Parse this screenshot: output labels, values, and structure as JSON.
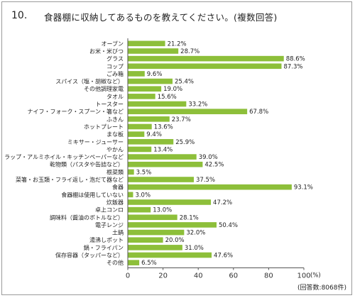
{
  "question": {
    "number": "10.",
    "title": "食器棚に収納してあるものを教えてください。(複数回答)"
  },
  "footnote": "(回答数:8068件)",
  "chart_data": {
    "type": "bar",
    "orientation": "horizontal",
    "categories": [
      "オーブン",
      "お米・米びつ",
      "グラス",
      "コップ",
      "ごみ箱",
      "スパイス（塩・胡椒など）",
      "その他調理家電",
      "タオル",
      "トースター",
      "ナイフ・フォーク・スプーン・箸など",
      "ふきん",
      "ホットプレート",
      "まな板",
      "ミキサー・ジューサー",
      "やかん",
      "ラップ・アルミホイル・キッチンペーパーなど",
      "乾物類（パスタや缶詰など）",
      "根菜類",
      "菜箸・お玉類・フライ返し・泡だて器など",
      "食器",
      "食器棚は使用していない",
      "炊飯器",
      "卓上コンロ",
      "調味料（醤油のボトルなど）",
      "電子レンジ",
      "土鍋",
      "湯沸しポット",
      "鍋・フライパン",
      "保存容器（タッパーなど）",
      "その他"
    ],
    "values": [
      21.2,
      28.7,
      88.6,
      87.3,
      9.6,
      25.4,
      19.0,
      15.6,
      33.2,
      67.8,
      23.7,
      13.6,
      9.4,
      25.9,
      13.4,
      39.0,
      42.5,
      3.5,
      37.5,
      93.1,
      3.0,
      47.2,
      13.0,
      28.1,
      50.4,
      32.0,
      20.0,
      31.0,
      47.6,
      6.5
    ],
    "value_labels": [
      "21.2%",
      "28.7%",
      "88.6%",
      "87.3%",
      "9.6%",
      "25.4%",
      "19.0%",
      "15.6%",
      "33.2%",
      "67.8%",
      "23.7%",
      "13.6%",
      "9.4%",
      "25.9%",
      "13.4%",
      "39.0%",
      "42.5%",
      "3.5%",
      "37.5%",
      "93.1%",
      "3.0%",
      "47.2%",
      "13.0%",
      "28.1%",
      "50.4%",
      "32.0%",
      "20.0%",
      "31.0%",
      "47.6%",
      "6.5%"
    ],
    "xlim": [
      0,
      100
    ],
    "xticks": [
      0,
      20,
      40,
      60,
      80,
      100
    ],
    "xtick_labels": [
      "0",
      "20",
      "40",
      "60",
      "80",
      "100"
    ],
    "x_unit": "(%)",
    "bar_color": "#8dbf3a",
    "grid": false
  }
}
